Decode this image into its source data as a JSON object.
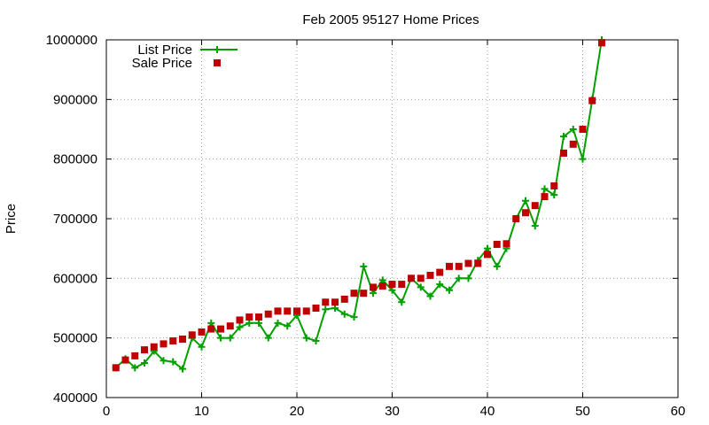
{
  "chart_data": {
    "type": "line",
    "title": "Feb 2005 95127 Home Prices",
    "xlabel": "",
    "ylabel": "Price",
    "xlim": [
      0,
      60
    ],
    "ylim": [
      400000,
      1000000
    ],
    "xticks": [
      "0",
      "10",
      "20",
      "30",
      "40",
      "50",
      "60"
    ],
    "yticks": [
      "400000",
      "500000",
      "600000",
      "700000",
      "800000",
      "900000",
      "1000000"
    ],
    "grid": true,
    "legend_position": "top-left",
    "colors": {
      "list": "#00a000",
      "sale": "#c00000"
    },
    "series": [
      {
        "name": "List Price",
        "style": "line-with-plus-markers",
        "x": [
          1,
          2,
          3,
          4,
          5,
          6,
          7,
          8,
          9,
          10,
          11,
          12,
          13,
          14,
          15,
          16,
          17,
          18,
          19,
          20,
          21,
          22,
          23,
          24,
          25,
          26,
          27,
          28,
          29,
          30,
          31,
          32,
          33,
          34,
          35,
          36,
          37,
          38,
          39,
          40,
          41,
          42,
          43,
          44,
          45,
          46,
          47,
          48,
          49,
          50,
          51,
          52
        ],
        "y": [
          450000,
          465000,
          450000,
          458000,
          478000,
          462000,
          460000,
          448000,
          500000,
          485000,
          525000,
          500000,
          500000,
          518000,
          525000,
          525000,
          500000,
          525000,
          520000,
          538000,
          500000,
          495000,
          548000,
          550000,
          540000,
          535000,
          620000,
          575000,
          597000,
          580000,
          560000,
          600000,
          585000,
          570000,
          590000,
          580000,
          600000,
          600000,
          630000,
          650000,
          620000,
          650000,
          700000,
          730000,
          688000,
          750000,
          740000,
          838000,
          850000,
          800000,
          900000,
          1000000
        ]
      },
      {
        "name": "Sale Price",
        "style": "square-markers",
        "x": [
          1,
          2,
          3,
          4,
          5,
          6,
          7,
          8,
          9,
          10,
          11,
          12,
          13,
          14,
          15,
          16,
          17,
          18,
          19,
          20,
          21,
          22,
          23,
          24,
          25,
          26,
          27,
          28,
          29,
          30,
          31,
          32,
          33,
          34,
          35,
          36,
          37,
          38,
          39,
          40,
          41,
          42,
          43,
          44,
          45,
          46,
          47,
          48,
          49,
          50,
          51,
          52
        ],
        "y": [
          450000,
          463000,
          470000,
          480000,
          485000,
          490000,
          495000,
          498000,
          505000,
          510000,
          515000,
          515000,
          520000,
          530000,
          535000,
          535000,
          540000,
          545000,
          545000,
          545000,
          545000,
          550000,
          560000,
          560000,
          565000,
          575000,
          575000,
          585000,
          587000,
          590000,
          590000,
          600000,
          600000,
          605000,
          610000,
          620000,
          620000,
          625000,
          625000,
          640000,
          657000,
          658000,
          700000,
          710000,
          722000,
          737000,
          755000,
          810000,
          825000,
          850000,
          898000,
          995000
        ]
      }
    ]
  }
}
